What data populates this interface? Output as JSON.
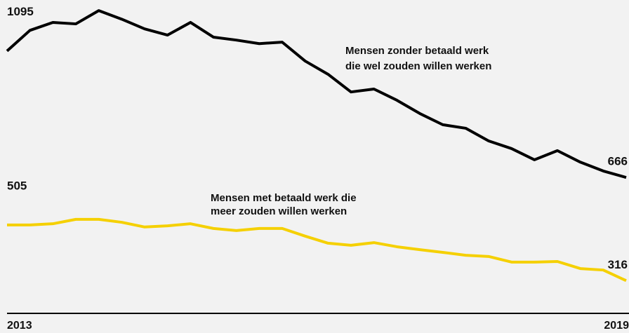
{
  "chart_data": {
    "type": "line",
    "categories": [
      "2013",
      null,
      null,
      null,
      null,
      null,
      null,
      null,
      null,
      null,
      null,
      null,
      null,
      null,
      null,
      null,
      null,
      null,
      null,
      null,
      null,
      null,
      null,
      null,
      null,
      null,
      null,
      "2019"
    ],
    "ylim": [
      205,
      1268
    ],
    "series": [
      {
        "color": "#000000",
        "label_lines": [
          "Mensen zonder betaald werk",
          "die wel zouden willen werken"
        ],
        "values": [
          1095,
          1165,
          1192,
          1187,
          1232,
          1203,
          1170,
          1149,
          1192,
          1142,
          1132,
          1120,
          1125,
          1061,
          1016,
          956,
          966,
          928,
          883,
          845,
          833,
          790,
          764,
          726,
          757,
          718,
          688,
          666
        ]
      },
      {
        "color": "#f5d000",
        "label_lines": [
          "Mensen met betaald werk die",
          "meer zouden willen werken"
        ],
        "values": [
          505,
          505,
          509,
          524,
          524,
          514,
          498,
          502,
          509,
          493,
          486,
          493,
          493,
          467,
          443,
          436,
          445,
          431,
          421,
          412,
          402,
          398,
          379,
          379,
          381,
          357,
          352,
          316
        ]
      }
    ]
  }
}
